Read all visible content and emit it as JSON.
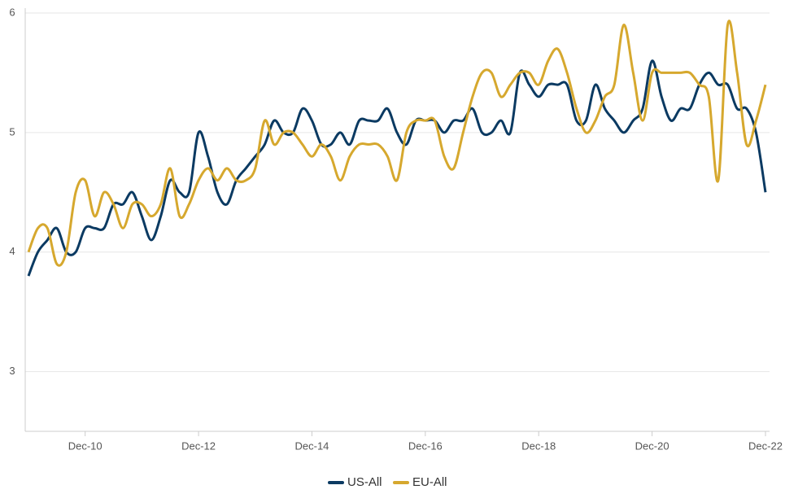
{
  "chart_data": {
    "type": "line",
    "categories": [
      null,
      null,
      null,
      null,
      null,
      null,
      "Dec-10",
      null,
      null,
      null,
      null,
      null,
      null,
      null,
      null,
      null,
      null,
      null,
      "Dec-12",
      null,
      null,
      null,
      null,
      null,
      null,
      null,
      null,
      null,
      null,
      null,
      "Dec-14",
      null,
      null,
      null,
      null,
      null,
      null,
      null,
      null,
      null,
      null,
      null,
      "Dec-16",
      null,
      null,
      null,
      null,
      null,
      null,
      null,
      null,
      null,
      null,
      null,
      "Dec-18",
      null,
      null,
      null,
      null,
      null,
      null,
      null,
      null,
      null,
      null,
      null,
      "Dec-20",
      null,
      null,
      null,
      null,
      null,
      null,
      null,
      null,
      null,
      null,
      null,
      "Dec-22"
    ],
    "series": [
      {
        "name": "US-All",
        "color": "#0b3a62",
        "values": [
          3.8,
          4.0,
          4.1,
          4.2,
          4.0,
          4.0,
          4.2,
          4.2,
          4.2,
          4.4,
          4.4,
          4.5,
          4.3,
          4.1,
          4.3,
          4.6,
          4.5,
          4.5,
          5.0,
          4.8,
          4.5,
          4.4,
          4.6,
          4.7,
          4.8,
          4.9,
          5.1,
          5.0,
          5.0,
          5.2,
          5.1,
          4.9,
          4.9,
          5.0,
          4.9,
          5.1,
          5.1,
          5.1,
          5.2,
          5.0,
          4.9,
          5.1,
          5.1,
          5.1,
          5.0,
          5.1,
          5.1,
          5.2,
          5.0,
          5.0,
          5.1,
          5.0,
          5.5,
          5.4,
          5.3,
          5.4,
          5.4,
          5.4,
          5.1,
          5.1,
          5.4,
          5.2,
          5.1,
          5.0,
          5.1,
          5.2,
          5.6,
          5.3,
          5.1,
          5.2,
          5.2,
          5.4,
          5.5,
          5.4,
          5.4,
          5.2,
          5.2,
          5.0,
          4.5
        ]
      },
      {
        "name": "EU-All",
        "color": "#d6a82e",
        "values": [
          4.0,
          4.2,
          4.2,
          3.9,
          4.0,
          4.5,
          4.6,
          4.3,
          4.5,
          4.4,
          4.2,
          4.4,
          4.4,
          4.3,
          4.4,
          4.7,
          4.3,
          4.4,
          4.6,
          4.7,
          4.6,
          4.7,
          4.6,
          4.6,
          4.7,
          5.1,
          4.9,
          5.0,
          5.0,
          4.9,
          4.8,
          4.9,
          4.8,
          4.6,
          4.8,
          4.9,
          4.9,
          4.9,
          4.8,
          4.6,
          5.0,
          5.1,
          5.1,
          5.1,
          4.8,
          4.7,
          5.0,
          5.3,
          5.5,
          5.5,
          5.3,
          5.4,
          5.5,
          5.5,
          5.4,
          5.6,
          5.7,
          5.5,
          5.2,
          5.0,
          5.1,
          5.3,
          5.4,
          5.9,
          5.5,
          5.1,
          5.5,
          5.5,
          5.5,
          5.5,
          5.5,
          5.4,
          5.3,
          4.6,
          5.9,
          5.5,
          4.9,
          5.1,
          5.4
        ]
      }
    ],
    "ylim": [
      2.5,
      6
    ],
    "yticks": [
      3,
      4,
      5,
      6
    ],
    "grid": true,
    "legend": "bottom"
  }
}
